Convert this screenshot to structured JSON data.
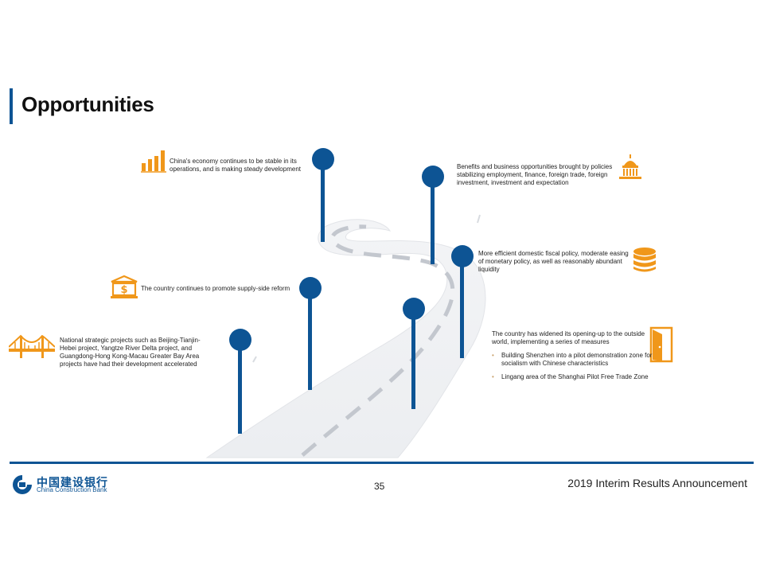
{
  "title": "Opportunities",
  "items": [
    {
      "text": "China's economy continues to be stable in its operations, and is making steady development",
      "icon": "bar-chart-icon"
    },
    {
      "text": "Benefits and business opportunities brought by policies stabilizing employment, finance, foreign trade, foreign investment, investment and expectation",
      "icon": "capitol-building-icon"
    },
    {
      "text": "More efficient domestic fiscal policy, moderate easing of monetary policy, as well as reasonably abundant liquidity",
      "icon": "coin-stack-icon"
    },
    {
      "text": "The country continues to promote supply-side reform",
      "icon": "bank-dollar-icon"
    },
    {
      "text": "National strategic projects such as Beijing-Tianjin-Hebei project, Yangtze River Delta project, and Guangdong-Hong Kong-Macau Greater Bay Area projects have had their development accelerated",
      "icon": "bridge-icon"
    },
    {
      "text": "The country has widened its opening-up to the outside world, implementing a series of measures",
      "icon": "open-door-icon",
      "bullets": [
        "Building Shenzhen into a pilot demonstration zone for socialism with Chinese characteristics",
        "Lingang area of the Shanghai Pilot Free Trade Zone"
      ]
    }
  ],
  "colors": {
    "accent_blue": "#0d5494",
    "icon_orange": "#f0971a",
    "road": "#f1f2f4"
  },
  "footer": {
    "page_number": "35",
    "report_title": "2019 Interim Results Announcement",
    "bank_name_cn": "中国建设银行",
    "bank_name_en": "China Construction Bank"
  }
}
